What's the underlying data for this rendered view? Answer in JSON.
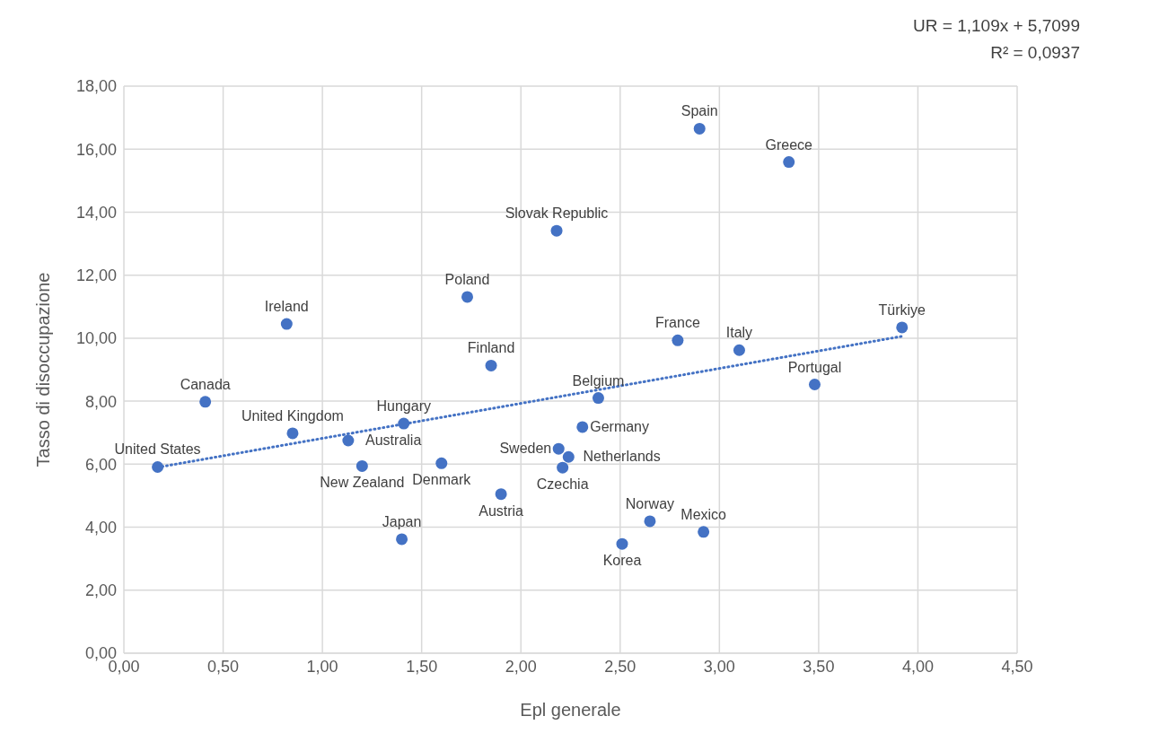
{
  "chart_data": {
    "type": "scatter",
    "xlabel": "Epl generale",
    "ylabel": "Tasso di disoccupazione",
    "annotations": [
      "UR = 1,109x + 5,7099",
      "R² = 0,0937"
    ],
    "xlim": [
      0,
      4.5
    ],
    "xticks": [
      {
        "value": 0,
        "label": "0,00"
      },
      {
        "value": 0.5,
        "label": "0,50"
      },
      {
        "value": 1,
        "label": "1,00"
      },
      {
        "value": 1.5,
        "label": "1,50"
      },
      {
        "value": 2,
        "label": "2,00"
      },
      {
        "value": 2.5,
        "label": "2,50"
      },
      {
        "value": 3,
        "label": "3,00"
      },
      {
        "value": 3.5,
        "label": "3,50"
      },
      {
        "value": 4,
        "label": "4,00"
      },
      {
        "value": 4.5,
        "label": "4,50"
      }
    ],
    "ylim": [
      0,
      18
    ],
    "yticks": [
      {
        "value": 0,
        "label": "0,00"
      },
      {
        "value": 2,
        "label": "2,00"
      },
      {
        "value": 4,
        "label": "4,00"
      },
      {
        "value": 6,
        "label": "6,00"
      },
      {
        "value": 8,
        "label": "8,00"
      },
      {
        "value": 10,
        "label": "10,00"
      },
      {
        "value": 12,
        "label": "12,00"
      },
      {
        "value": 14,
        "label": "14,00"
      },
      {
        "value": 16,
        "label": "16,00"
      },
      {
        "value": 18,
        "label": "18,00"
      }
    ],
    "grid": true,
    "marker": "circle",
    "series": [
      {
        "color": "#4472c4",
        "x": [
          0.17,
          0.41,
          0.82,
          0.85,
          1.13,
          1.2,
          1.4,
          1.41,
          1.6,
          1.73,
          1.85,
          1.9,
          2.18,
          2.19,
          2.21,
          2.24,
          2.31,
          2.39,
          2.51,
          2.65,
          2.79,
          2.9,
          2.92,
          3.1,
          3.35,
          3.48,
          3.92
        ],
        "values": [
          5.91,
          7.98,
          10.45,
          6.98,
          6.75,
          5.94,
          3.62,
          7.29,
          6.03,
          11.31,
          9.13,
          5.05,
          13.41,
          6.49,
          5.89,
          6.23,
          7.18,
          8.1,
          3.47,
          4.19,
          9.93,
          16.65,
          3.85,
          9.62,
          15.59,
          8.53,
          10.34
        ],
        "value_labels": [
          "United States",
          "Canada",
          "Ireland",
          "United Kingdom",
          "Australia",
          "New Zealand",
          "Japan",
          "Hungary",
          "Denmark",
          "Poland",
          "Finland",
          "Austria",
          "Slovak Republic",
          "Sweden",
          "Czechia",
          "Netherlands",
          "Germany",
          "Belgium",
          "Korea",
          "Norway",
          "France",
          "Spain",
          "Mexico",
          "Italy",
          "Greece",
          "Portugal",
          "Türkiye"
        ]
      },
      {
        "type": "line",
        "color": "#4472c4",
        "marker": "none",
        "line_style": "dotted",
        "x": [
          0.17,
          3.92
        ],
        "values": [
          5.9,
          10.06
        ]
      }
    ]
  }
}
